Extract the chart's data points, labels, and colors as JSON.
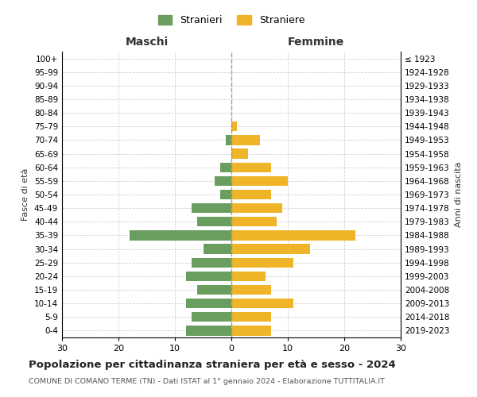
{
  "age_groups": [
    "0-4",
    "5-9",
    "10-14",
    "15-19",
    "20-24",
    "25-29",
    "30-34",
    "35-39",
    "40-44",
    "45-49",
    "50-54",
    "55-59",
    "60-64",
    "65-69",
    "70-74",
    "75-79",
    "80-84",
    "85-89",
    "90-94",
    "95-99",
    "100+"
  ],
  "birth_years": [
    "2019-2023",
    "2014-2018",
    "2009-2013",
    "2004-2008",
    "1999-2003",
    "1994-1998",
    "1989-1993",
    "1984-1988",
    "1979-1983",
    "1974-1978",
    "1969-1973",
    "1964-1968",
    "1959-1963",
    "1954-1958",
    "1949-1953",
    "1944-1948",
    "1939-1943",
    "1934-1938",
    "1929-1933",
    "1924-1928",
    "≤ 1923"
  ],
  "maschi": [
    8,
    7,
    8,
    6,
    8,
    7,
    5,
    18,
    6,
    7,
    2,
    3,
    2,
    0,
    1,
    0,
    0,
    0,
    0,
    0,
    0
  ],
  "femmine": [
    7,
    7,
    11,
    7,
    6,
    11,
    14,
    22,
    8,
    9,
    7,
    10,
    7,
    3,
    5,
    1,
    0,
    0,
    0,
    0,
    0
  ],
  "color_maschi": "#6a9e5e",
  "color_femmine": "#f0b429",
  "title": "Popolazione per cittadinanza straniera per età e sesso - 2024",
  "subtitle": "COMUNE DI COMANO TERME (TN) - Dati ISTAT al 1° gennaio 2024 - Elaborazione TUTTITALIA.IT",
  "legend_maschi": "Stranieri",
  "legend_femmine": "Straniere",
  "xlabel_left": "Maschi",
  "xlabel_right": "Femmine",
  "ylabel_left": "Fasce di età",
  "ylabel_right": "Anni di nascita",
  "xlim": 30,
  "background_color": "#ffffff",
  "grid_color": "#cccccc"
}
